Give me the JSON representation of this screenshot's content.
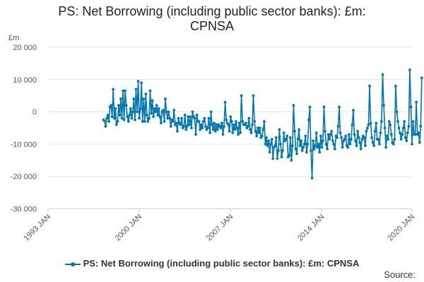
{
  "chart_data": {
    "type": "line",
    "title_lines": [
      "PS: Net Borrowing (including public sector banks): £m:",
      "CPNSA"
    ],
    "unit_label": "£m",
    "y_ticks": [
      20000,
      10000,
      0,
      -10000,
      -20000,
      -30000
    ],
    "y_tick_labels": [
      "20 000",
      "10 000",
      "0",
      "-10 000",
      "-20 000",
      "-30 000"
    ],
    "ylim": [
      -30000,
      20000
    ],
    "x_ticks": [
      "1993 JAN",
      "2000 JAN",
      "2007 JAN",
      "2014 JAN",
      "2020 JAN"
    ],
    "x_tick_values": [
      1993.0,
      2000.0,
      2007.0,
      2014.0,
      2020.917
    ],
    "xlim": [
      1993.0,
      2020.917
    ],
    "grid": true,
    "legend_position": "bottom",
    "color": "#0075b0",
    "series": [
      {
        "name": "PS: Net Borrowing (including public sector banks): £m: CPNSA",
        "start": "1997-04",
        "frequency": "monthly",
        "values": [
          -2500,
          -2800,
          -4500,
          -2000,
          -1000,
          -3000,
          1500,
          2000,
          -1500,
          7000,
          -2000,
          1000,
          -4000,
          -3000,
          2000,
          -1000,
          4000,
          -2000,
          6500,
          -2500,
          6500,
          2000,
          -1500,
          -3000,
          -1000,
          1000,
          -2000,
          0,
          4000,
          -2500,
          7000,
          0,
          9500,
          -2000,
          1000,
          9000,
          -3000,
          4000,
          -3000,
          5500,
          -1000,
          -3000,
          -2000,
          6500,
          -500,
          3500,
          -1500,
          1000,
          0,
          2000,
          -1000,
          1000,
          -1500,
          -3500,
          0,
          500,
          -3000,
          4000,
          0,
          -2000,
          0,
          -2000,
          -4500,
          -2500,
          -3000,
          500,
          -4000,
          -3500,
          -6000,
          -2000,
          -3500,
          -4000,
          -2000,
          -5000,
          -4500,
          -1000,
          -5500,
          -4500,
          -1500,
          -4000,
          -1500,
          -5000,
          0,
          -1500,
          -2000,
          -7000,
          -1000,
          -3000,
          -3000,
          -5500,
          -4000,
          -5000,
          -3000,
          -2000,
          -4500,
          -5500,
          -5000,
          -2000,
          -6500,
          0,
          -4000,
          -5500,
          -3500,
          -6000,
          -4000,
          -5500,
          -4000,
          -4500,
          -5000,
          -3500,
          -7000,
          -4500,
          3000,
          -2500,
          -3500,
          -4000,
          -6000,
          -1500,
          -3000,
          -6500,
          -4000,
          -5500,
          -3000,
          -5000,
          -7000,
          -3500,
          -6500,
          5000,
          -3000,
          -4000,
          -4000,
          -3500,
          -5000,
          -4500,
          -2000,
          -5500,
          -6500,
          -4000,
          5000,
          -3000,
          -6000,
          -7500,
          -5000,
          -6500,
          -5000,
          -8000,
          -7500,
          -5500,
          -3000,
          -10000,
          -8000,
          -10500,
          -9000,
          -12500,
          -10000,
          -8500,
          -14500,
          -11000,
          -10500,
          -8000,
          -14500,
          -12000,
          -5500,
          -10000,
          -14000,
          -12000,
          -6500,
          -9000,
          -8500,
          -7500,
          -14000,
          -13500,
          -8000,
          -15000,
          -10500,
          2000,
          -6000,
          -11500,
          -13000,
          -8500,
          -5500,
          -10500,
          -9000,
          -12000,
          -11000,
          -10000,
          -7500,
          -12500,
          -10000,
          -2500,
          1500,
          -12000,
          -20500,
          -9000,
          -11500,
          -10500,
          -6500,
          -11000,
          -10000,
          -12500,
          -7500,
          -11000,
          -9000,
          1500,
          -6000,
          -10000,
          -11500,
          -7000,
          -8500,
          -7000,
          -6000,
          -9000,
          -10000,
          -11500,
          -7500,
          -8000,
          -4500,
          1500,
          -6500,
          -8000,
          -11000,
          -9000,
          -8500,
          -7500,
          -10500,
          -11000,
          -7000,
          -10000,
          -8500,
          -4000,
          500,
          -7000,
          -9000,
          -10500,
          -6000,
          -8000,
          -9500,
          -11500,
          -8500,
          -7500,
          -8000,
          -10500,
          -6000,
          -5000,
          -4000,
          8000,
          -3500,
          -8000,
          -9500,
          -10500,
          -6000,
          -3500,
          -8500,
          -8500,
          -10000,
          -6500,
          -3000,
          11500,
          2000,
          -5000,
          -11000,
          -7500,
          -8500,
          -3000,
          -4000,
          -7000,
          -9500,
          -10000,
          -8500,
          8000,
          0,
          -3000,
          -5000,
          -6500,
          -8500,
          -7000,
          -5000,
          -3000,
          -8000,
          -9000,
          -6500,
          -4500,
          13000,
          1500,
          -10000,
          -3000,
          -7000,
          -7000,
          3000,
          -7000,
          -6500,
          -9500,
          -4500,
          10500
        ]
      }
    ]
  },
  "source_label": "Source:"
}
